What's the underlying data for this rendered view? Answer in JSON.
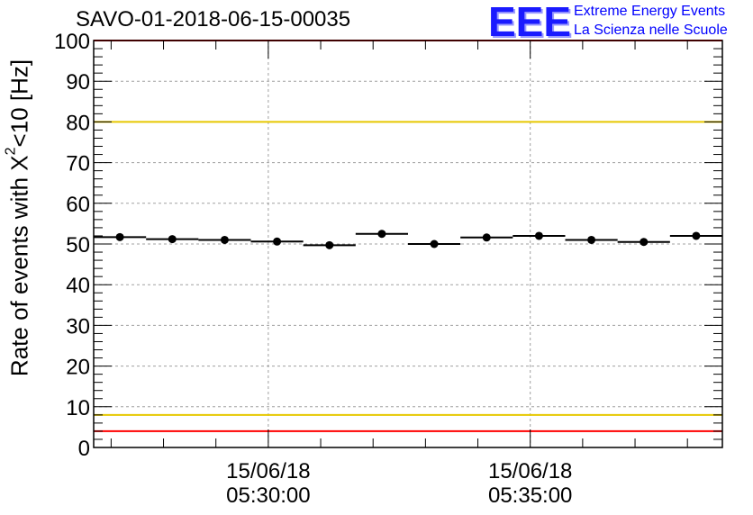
{
  "title": "SAVO-01-2018-06-15-00035",
  "logo": {
    "mark": "EEE",
    "line1": "Extreme Energy Events",
    "line2": "La Scienza nelle Scuole"
  },
  "chart_data": {
    "type": "scatter",
    "title": "SAVO-01-2018-06-15-00035",
    "ylabel": "Rate of events with X²<10 [Hz]",
    "ylabel_parts": {
      "pre": "Rate of events with X",
      "sup": "2",
      "post": "<10 [Hz]"
    },
    "xlabel": "",
    "ylim": [
      0,
      100
    ],
    "yticks": [
      0,
      10,
      20,
      30,
      40,
      50,
      60,
      70,
      80,
      90,
      100
    ],
    "y_tick_labels": [
      "0",
      "10",
      "20",
      "30",
      "40",
      "50",
      "60",
      "70",
      "80",
      "90",
      "100"
    ],
    "x_range_minutes": [
      26.667,
      38.667
    ],
    "x_major_ticks": [
      {
        "minute": 30,
        "label_date": "15/06/18",
        "label_time": "05:30:00"
      },
      {
        "minute": 35,
        "label_date": "15/06/18",
        "label_time": "05:35:00"
      }
    ],
    "bin_width_minutes": 1.0,
    "grid": true,
    "series": [
      {
        "name": "rate",
        "x_center_minutes": [
          27.167,
          28.167,
          29.167,
          30.167,
          31.167,
          32.167,
          33.167,
          34.167,
          35.167,
          36.167,
          37.167,
          38.167
        ],
        "values": [
          51.7,
          51.2,
          51.0,
          50.6,
          49.7,
          52.5,
          50.0,
          51.6,
          52.0,
          51.0,
          50.5,
          52.0
        ]
      }
    ],
    "reference_lines": [
      {
        "y": 100,
        "color": "#ff0000"
      },
      {
        "y": 80,
        "color": "#e6c800"
      },
      {
        "y": 8,
        "color": "#e6c800"
      },
      {
        "y": 4,
        "color": "#ff0000"
      }
    ]
  }
}
